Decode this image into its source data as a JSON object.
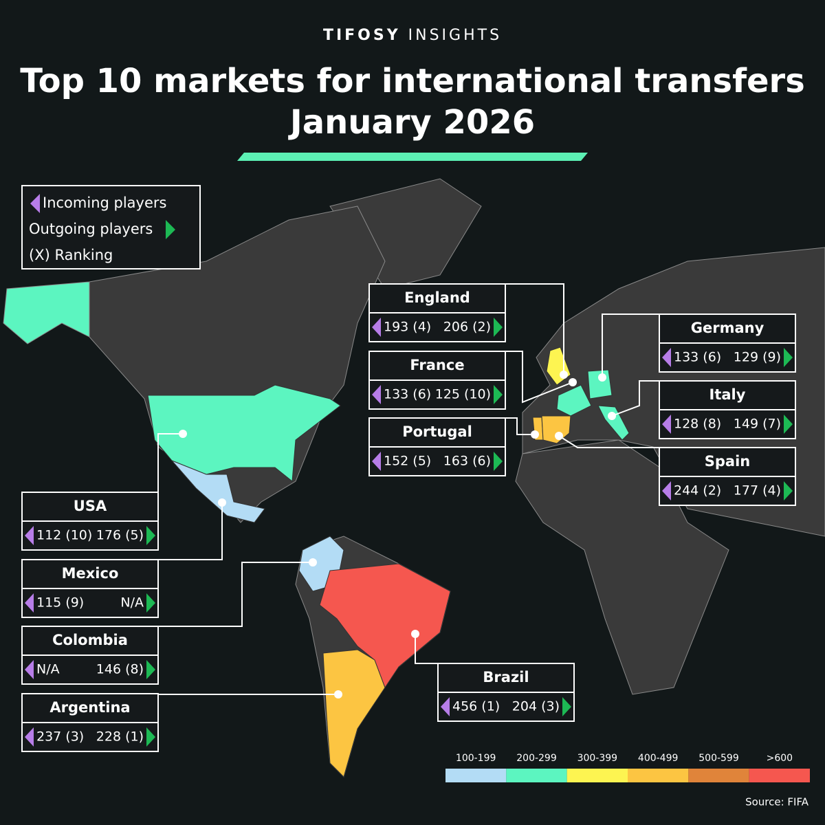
{
  "header": {
    "brand_bold": "TIFOSY",
    "brand_light": "INSIGHTS",
    "title_line1": "Top 10 markets for international transfers",
    "title_line2": "January 2026"
  },
  "legend": {
    "incoming": "Incoming players",
    "outgoing": "Outgoing players",
    "ranking": "(X) Ranking"
  },
  "markets": [
    {
      "name": "England",
      "incoming": "193 (4)",
      "outgoing": "206 (2)",
      "color": "#fdf451"
    },
    {
      "name": "France",
      "incoming": "133 (6)",
      "outgoing": "125 (10)",
      "color": "#5cf5c0"
    },
    {
      "name": "Portugal",
      "incoming": "152 (5)",
      "outgoing": "163 (6)",
      "color": "#fcc542"
    },
    {
      "name": "Germany",
      "incoming": "133 (6)",
      "outgoing": "129 (9)",
      "color": "#5cf5c0"
    },
    {
      "name": "Italy",
      "incoming": "128 (8)",
      "outgoing": "149 (7)",
      "color": "#5cf5c0"
    },
    {
      "name": "Spain",
      "incoming": "244 (2)",
      "outgoing": "177 (4)",
      "color": "#fcc542"
    },
    {
      "name": "USA",
      "incoming": "112 (10)",
      "outgoing": "176 (5)",
      "color": "#5cf5c0"
    },
    {
      "name": "Mexico",
      "incoming": "115 (9)",
      "outgoing": "N/A",
      "color": "#b3dcf5"
    },
    {
      "name": "Colombia",
      "incoming": "N/A",
      "outgoing": "146 (8)",
      "color": "#b3dcf5"
    },
    {
      "name": "Argentina",
      "incoming": "237 (3)",
      "outgoing": "228 (1)",
      "color": "#fcc542"
    },
    {
      "name": "Brazil",
      "incoming": "456 (1)",
      "outgoing": "204 (3)",
      "color": "#f5574f"
    }
  ],
  "scale": [
    {
      "label": "100-199",
      "color": "#b3dcf5"
    },
    {
      "label": "200-299",
      "color": "#5cf5c0"
    },
    {
      "label": "300-399",
      "color": "#fdf451"
    },
    {
      "label": "400-499",
      "color": "#fcc542"
    },
    {
      "label": "500-599",
      "color": "#e0843a"
    },
    {
      "label": ">600",
      "color": "#f5574f"
    }
  ],
  "source": "Source: FIFA"
}
